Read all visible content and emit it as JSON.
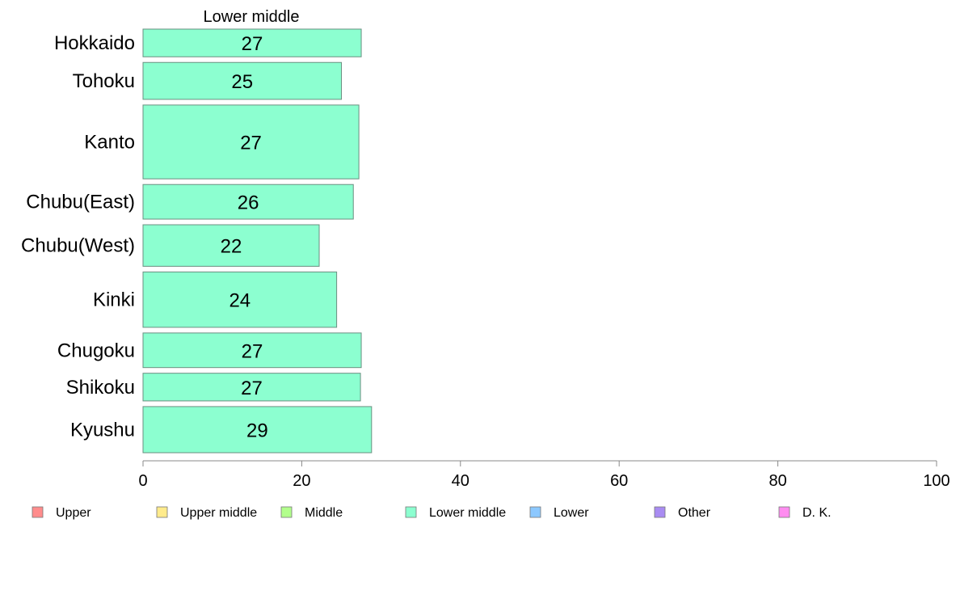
{
  "chart_data": {
    "type": "bar",
    "orientation": "horizontal",
    "title": "Lower middle",
    "categories": [
      "Hokkaido",
      "Tohoku",
      "Kanto",
      "Chubu(East)",
      "Chubu(West)",
      "Kinki",
      "Chugoku",
      "Shikoku",
      "Kyushu"
    ],
    "values": [
      27.5,
      25,
      27.2,
      26.5,
      22.2,
      24.4,
      27.5,
      27.4,
      28.8
    ],
    "data_labels": [
      "27",
      "25",
      "27",
      "26",
      "22",
      "24",
      "27",
      "27",
      "29"
    ],
    "category_weights": [
      0.6,
      0.8,
      1.6,
      0.75,
      0.9,
      1.2,
      0.75,
      0.6,
      1.0
    ],
    "xlim": [
      0,
      100
    ],
    "x_ticks": [
      0,
      20,
      40,
      60,
      80,
      100
    ],
    "x_tick_labels": [
      "0",
      "20",
      "40",
      "60",
      "80",
      "100"
    ],
    "grid": false,
    "bar_color": "#8CFFD0",
    "bar_edge_color": "#6a8f80",
    "legend": {
      "placement": "bottom",
      "items": [
        {
          "label": "Upper",
          "color": "#FF8C8C"
        },
        {
          "label": "Upper middle",
          "color": "#FFEB8C"
        },
        {
          "label": "Middle",
          "color": "#B2FF8C"
        },
        {
          "label": "Lower middle",
          "color": "#8CFFD0"
        },
        {
          "label": "Lower",
          "color": "#8CC8FF"
        },
        {
          "label": "Other",
          "color": "#A98CF2"
        },
        {
          "label": "D. K.",
          "color": "#FF8CF0"
        }
      ]
    }
  }
}
